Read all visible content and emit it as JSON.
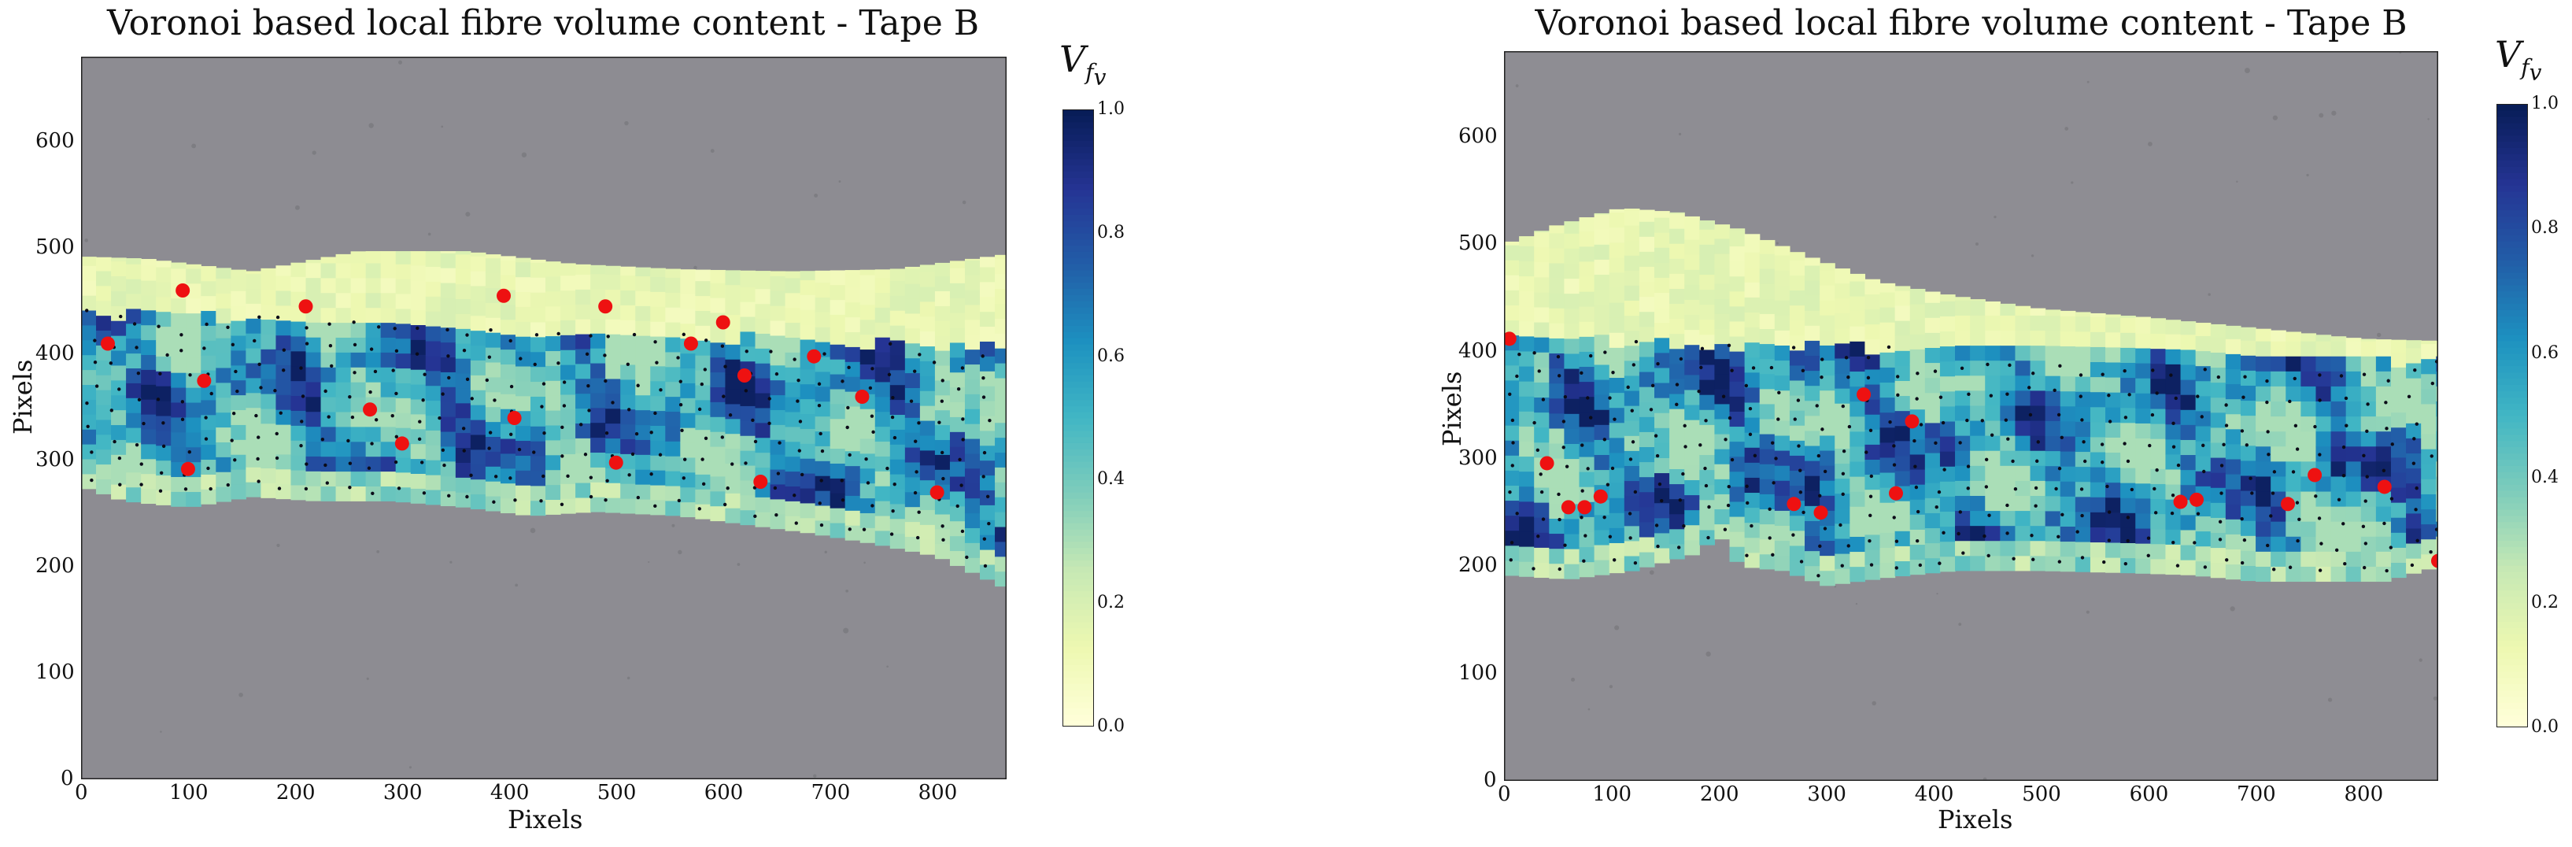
{
  "chart_data": [
    {
      "type": "heatmap",
      "title": "Voronoi based local fibre volume content - Tape B",
      "xlabel": "Pixels",
      "ylabel": "Pixels",
      "xlim": [
        0,
        865
      ],
      "ylim": [
        0,
        680
      ],
      "xticks": [
        0,
        100,
        200,
        300,
        400,
        500,
        600,
        700,
        800
      ],
      "yticks": [
        0,
        100,
        200,
        300,
        400,
        500,
        600
      ],
      "colorbar": {
        "label_main": "V",
        "label_sub": "f",
        "label_subsub": "v",
        "range": [
          0,
          1
        ],
        "ticks": [
          0.0,
          0.2,
          0.4,
          0.6,
          0.8,
          1.0
        ],
        "colormap": "YlGnBu"
      },
      "region_top": [
        [
          0,
          492
        ],
        [
          60,
          490
        ],
        [
          160,
          478
        ],
        [
          260,
          497
        ],
        [
          360,
          497
        ],
        [
          460,
          485
        ],
        [
          560,
          480
        ],
        [
          660,
          478
        ],
        [
          760,
          480
        ],
        [
          865,
          494
        ]
      ],
      "fibre_top": [
        [
          0,
          440
        ],
        [
          865,
          405
        ]
      ],
      "region_bottom": [
        [
          0,
          276
        ],
        [
          40,
          262
        ],
        [
          100,
          256
        ],
        [
          160,
          266
        ],
        [
          220,
          262
        ],
        [
          290,
          262
        ],
        [
          360,
          256
        ],
        [
          420,
          248
        ],
        [
          480,
          252
        ],
        [
          560,
          248
        ],
        [
          620,
          240
        ],
        [
          680,
          232
        ],
        [
          740,
          222
        ],
        [
          800,
          210
        ],
        [
          865,
          180
        ]
      ],
      "resin_rich_points": [
        [
          25,
          410
        ],
        [
          100,
          292
        ],
        [
          115,
          375
        ],
        [
          210,
          445
        ],
        [
          270,
          348
        ],
        [
          300,
          316
        ],
        [
          395,
          455
        ],
        [
          405,
          340
        ],
        [
          490,
          445
        ],
        [
          500,
          298
        ],
        [
          570,
          410
        ],
        [
          600,
          430
        ],
        [
          620,
          380
        ],
        [
          635,
          280
        ],
        [
          685,
          398
        ],
        [
          730,
          360
        ],
        [
          800,
          270
        ],
        [
          95,
          460
        ]
      ],
      "background_color": "#8d8c92"
    },
    {
      "type": "heatmap",
      "title": "Voronoi based local fibre volume content - Tape B",
      "xlabel": "Pixels",
      "ylabel": "Pixels",
      "xlim": [
        0,
        870
      ],
      "ylim": [
        0,
        680
      ],
      "xticks": [
        0,
        100,
        200,
        300,
        400,
        500,
        600,
        700,
        800
      ],
      "yticks": [
        0,
        100,
        200,
        300,
        400,
        500,
        600
      ],
      "colorbar": {
        "label_main": "V",
        "label_sub": "f",
        "label_subsub": "v",
        "range": [
          0,
          1
        ],
        "ticks": [
          0.0,
          0.2,
          0.4,
          0.6,
          0.8,
          1.0
        ],
        "colormap": "YlGnBu"
      },
      "region_top": [
        [
          0,
          500
        ],
        [
          50,
          518
        ],
        [
          110,
          534
        ],
        [
          160,
          530
        ],
        [
          220,
          514
        ],
        [
          280,
          490
        ],
        [
          350,
          465
        ],
        [
          420,
          452
        ],
        [
          500,
          440
        ],
        [
          600,
          432
        ],
        [
          700,
          422
        ],
        [
          800,
          412
        ],
        [
          870,
          410
        ]
      ],
      "fibre_top": [
        [
          0,
          412
        ],
        [
          870,
          390
        ]
      ],
      "region_bottom": [
        [
          0,
          192
        ],
        [
          60,
          188
        ],
        [
          120,
          196
        ],
        [
          180,
          212
        ],
        [
          200,
          230
        ],
        [
          220,
          200
        ],
        [
          260,
          196
        ],
        [
          300,
          182
        ],
        [
          360,
          190
        ],
        [
          420,
          196
        ],
        [
          500,
          196
        ],
        [
          580,
          194
        ],
        [
          640,
          192
        ],
        [
          700,
          186
        ],
        [
          760,
          186
        ],
        [
          820,
          186
        ],
        [
          870,
          200
        ]
      ],
      "resin_rich_points": [
        [
          5,
          412
        ],
        [
          40,
          296
        ],
        [
          60,
          255
        ],
        [
          75,
          255
        ],
        [
          90,
          265
        ],
        [
          270,
          258
        ],
        [
          295,
          250
        ],
        [
          335,
          360
        ],
        [
          365,
          268
        ],
        [
          380,
          335
        ],
        [
          630,
          260
        ],
        [
          645,
          262
        ],
        [
          730,
          258
        ],
        [
          755,
          285
        ],
        [
          820,
          274
        ],
        [
          870,
          205
        ]
      ],
      "background_color": "#8e8d93"
    }
  ]
}
